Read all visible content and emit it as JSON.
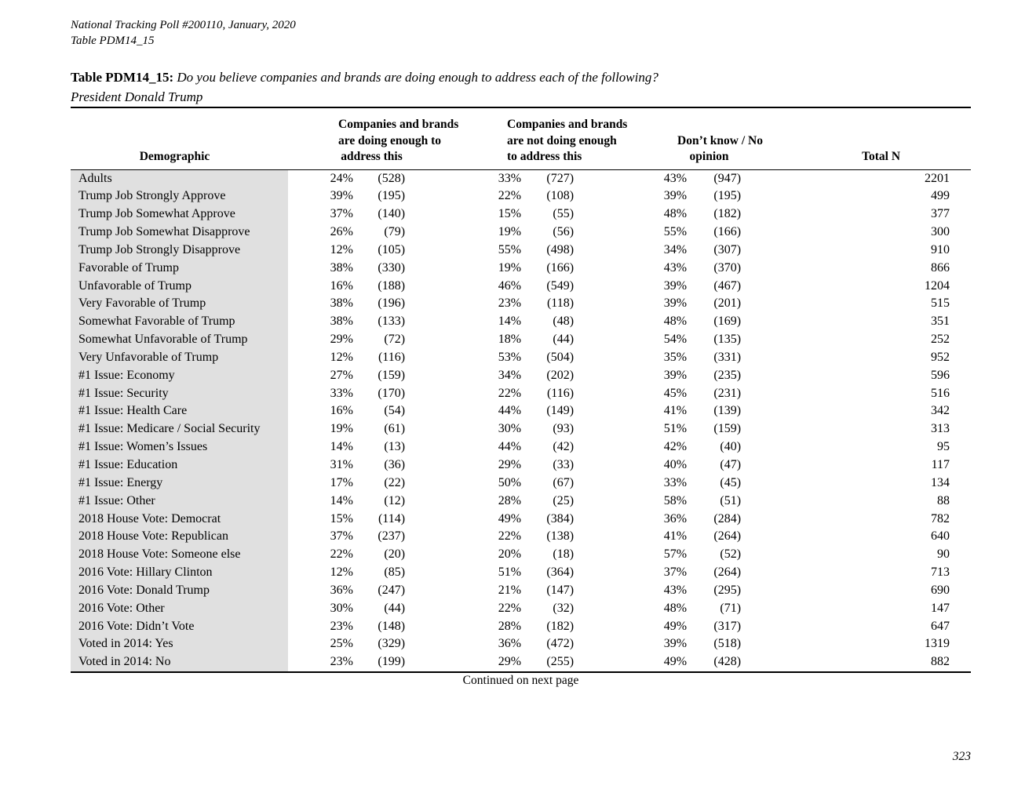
{
  "colors": {
    "row_shade": "#e0e0e0",
    "rule": "#000000",
    "text": "#000000",
    "background": "#ffffff"
  },
  "doc_header": {
    "line1": "National Tracking Poll #200110, January, 2020",
    "line2": "Table PDM14_15"
  },
  "title": {
    "prefix": "Table PDM14_15:",
    "question": "Do you believe companies and brands are doing enough to address each of the following?",
    "subject": "President Donald Trump"
  },
  "table": {
    "columns": {
      "demographic": "Demographic",
      "group1": "Companies and brands\nare doing enough to\naddress this",
      "group2": "Companies and brands\nare not doing enough\nto address this",
      "group3": "Don’t know / No\nopinion",
      "total": "Total N"
    },
    "rows": [
      {
        "demo": "Adults",
        "p1": "24%",
        "n1": "(528)",
        "p2": "33%",
        "n2": "(727)",
        "p3": "43%",
        "n3": "(947)",
        "total": "2201"
      },
      {
        "demo": "Trump Job Strongly Approve",
        "p1": "39%",
        "n1": "(195)",
        "p2": "22%",
        "n2": "(108)",
        "p3": "39%",
        "n3": "(195)",
        "total": "499"
      },
      {
        "demo": "Trump Job Somewhat Approve",
        "p1": "37%",
        "n1": "(140)",
        "p2": "15%",
        "n2": "(55)",
        "p3": "48%",
        "n3": "(182)",
        "total": "377"
      },
      {
        "demo": "Trump Job Somewhat Disapprove",
        "p1": "26%",
        "n1": "(79)",
        "p2": "19%",
        "n2": "(56)",
        "p3": "55%",
        "n3": "(166)",
        "total": "300"
      },
      {
        "demo": "Trump Job Strongly Disapprove",
        "p1": "12%",
        "n1": "(105)",
        "p2": "55%",
        "n2": "(498)",
        "p3": "34%",
        "n3": "(307)",
        "total": "910"
      },
      {
        "demo": "Favorable of Trump",
        "p1": "38%",
        "n1": "(330)",
        "p2": "19%",
        "n2": "(166)",
        "p3": "43%",
        "n3": "(370)",
        "total": "866"
      },
      {
        "demo": "Unfavorable of Trump",
        "p1": "16%",
        "n1": "(188)",
        "p2": "46%",
        "n2": "(549)",
        "p3": "39%",
        "n3": "(467)",
        "total": "1204"
      },
      {
        "demo": "Very Favorable of Trump",
        "p1": "38%",
        "n1": "(196)",
        "p2": "23%",
        "n2": "(118)",
        "p3": "39%",
        "n3": "(201)",
        "total": "515"
      },
      {
        "demo": "Somewhat Favorable of Trump",
        "p1": "38%",
        "n1": "(133)",
        "p2": "14%",
        "n2": "(48)",
        "p3": "48%",
        "n3": "(169)",
        "total": "351"
      },
      {
        "demo": "Somewhat Unfavorable of Trump",
        "p1": "29%",
        "n1": "(72)",
        "p2": "18%",
        "n2": "(44)",
        "p3": "54%",
        "n3": "(135)",
        "total": "252"
      },
      {
        "demo": "Very Unfavorable of Trump",
        "p1": "12%",
        "n1": "(116)",
        "p2": "53%",
        "n2": "(504)",
        "p3": "35%",
        "n3": "(331)",
        "total": "952"
      },
      {
        "demo": "#1 Issue: Economy",
        "p1": "27%",
        "n1": "(159)",
        "p2": "34%",
        "n2": "(202)",
        "p3": "39%",
        "n3": "(235)",
        "total": "596"
      },
      {
        "demo": "#1 Issue: Security",
        "p1": "33%",
        "n1": "(170)",
        "p2": "22%",
        "n2": "(116)",
        "p3": "45%",
        "n3": "(231)",
        "total": "516"
      },
      {
        "demo": "#1 Issue: Health Care",
        "p1": "16%",
        "n1": "(54)",
        "p2": "44%",
        "n2": "(149)",
        "p3": "41%",
        "n3": "(139)",
        "total": "342"
      },
      {
        "demo": "#1 Issue: Medicare / Social Security",
        "p1": "19%",
        "n1": "(61)",
        "p2": "30%",
        "n2": "(93)",
        "p3": "51%",
        "n3": "(159)",
        "total": "313"
      },
      {
        "demo": "#1 Issue: Women’s Issues",
        "p1": "14%",
        "n1": "(13)",
        "p2": "44%",
        "n2": "(42)",
        "p3": "42%",
        "n3": "(40)",
        "total": "95"
      },
      {
        "demo": "#1 Issue: Education",
        "p1": "31%",
        "n1": "(36)",
        "p2": "29%",
        "n2": "(33)",
        "p3": "40%",
        "n3": "(47)",
        "total": "117"
      },
      {
        "demo": "#1 Issue: Energy",
        "p1": "17%",
        "n1": "(22)",
        "p2": "50%",
        "n2": "(67)",
        "p3": "33%",
        "n3": "(45)",
        "total": "134"
      },
      {
        "demo": "#1 Issue: Other",
        "p1": "14%",
        "n1": "(12)",
        "p2": "28%",
        "n2": "(25)",
        "p3": "58%",
        "n3": "(51)",
        "total": "88"
      },
      {
        "demo": "2018 House Vote: Democrat",
        "p1": "15%",
        "n1": "(114)",
        "p2": "49%",
        "n2": "(384)",
        "p3": "36%",
        "n3": "(284)",
        "total": "782"
      },
      {
        "demo": "2018 House Vote: Republican",
        "p1": "37%",
        "n1": "(237)",
        "p2": "22%",
        "n2": "(138)",
        "p3": "41%",
        "n3": "(264)",
        "total": "640"
      },
      {
        "demo": "2018 House Vote: Someone else",
        "p1": "22%",
        "n1": "(20)",
        "p2": "20%",
        "n2": "(18)",
        "p3": "57%",
        "n3": "(52)",
        "total": "90"
      },
      {
        "demo": "2016 Vote: Hillary Clinton",
        "p1": "12%",
        "n1": "(85)",
        "p2": "51%",
        "n2": "(364)",
        "p3": "37%",
        "n3": "(264)",
        "total": "713"
      },
      {
        "demo": "2016 Vote: Donald Trump",
        "p1": "36%",
        "n1": "(247)",
        "p2": "21%",
        "n2": "(147)",
        "p3": "43%",
        "n3": "(295)",
        "total": "690"
      },
      {
        "demo": "2016 Vote: Other",
        "p1": "30%",
        "n1": "(44)",
        "p2": "22%",
        "n2": "(32)",
        "p3": "48%",
        "n3": "(71)",
        "total": "147"
      },
      {
        "demo": "2016 Vote: Didn’t Vote",
        "p1": "23%",
        "n1": "(148)",
        "p2": "28%",
        "n2": "(182)",
        "p3": "49%",
        "n3": "(317)",
        "total": "647"
      },
      {
        "demo": "Voted in 2014: Yes",
        "p1": "25%",
        "n1": "(329)",
        "p2": "36%",
        "n2": "(472)",
        "p3": "39%",
        "n3": "(518)",
        "total": "1319"
      },
      {
        "demo": "Voted in 2014: No",
        "p1": "23%",
        "n1": "(199)",
        "p2": "29%",
        "n2": "(255)",
        "p3": "49%",
        "n3": "(428)",
        "total": "882"
      }
    ]
  },
  "footer": {
    "continued": "Continued on next page",
    "page_number": "323"
  }
}
